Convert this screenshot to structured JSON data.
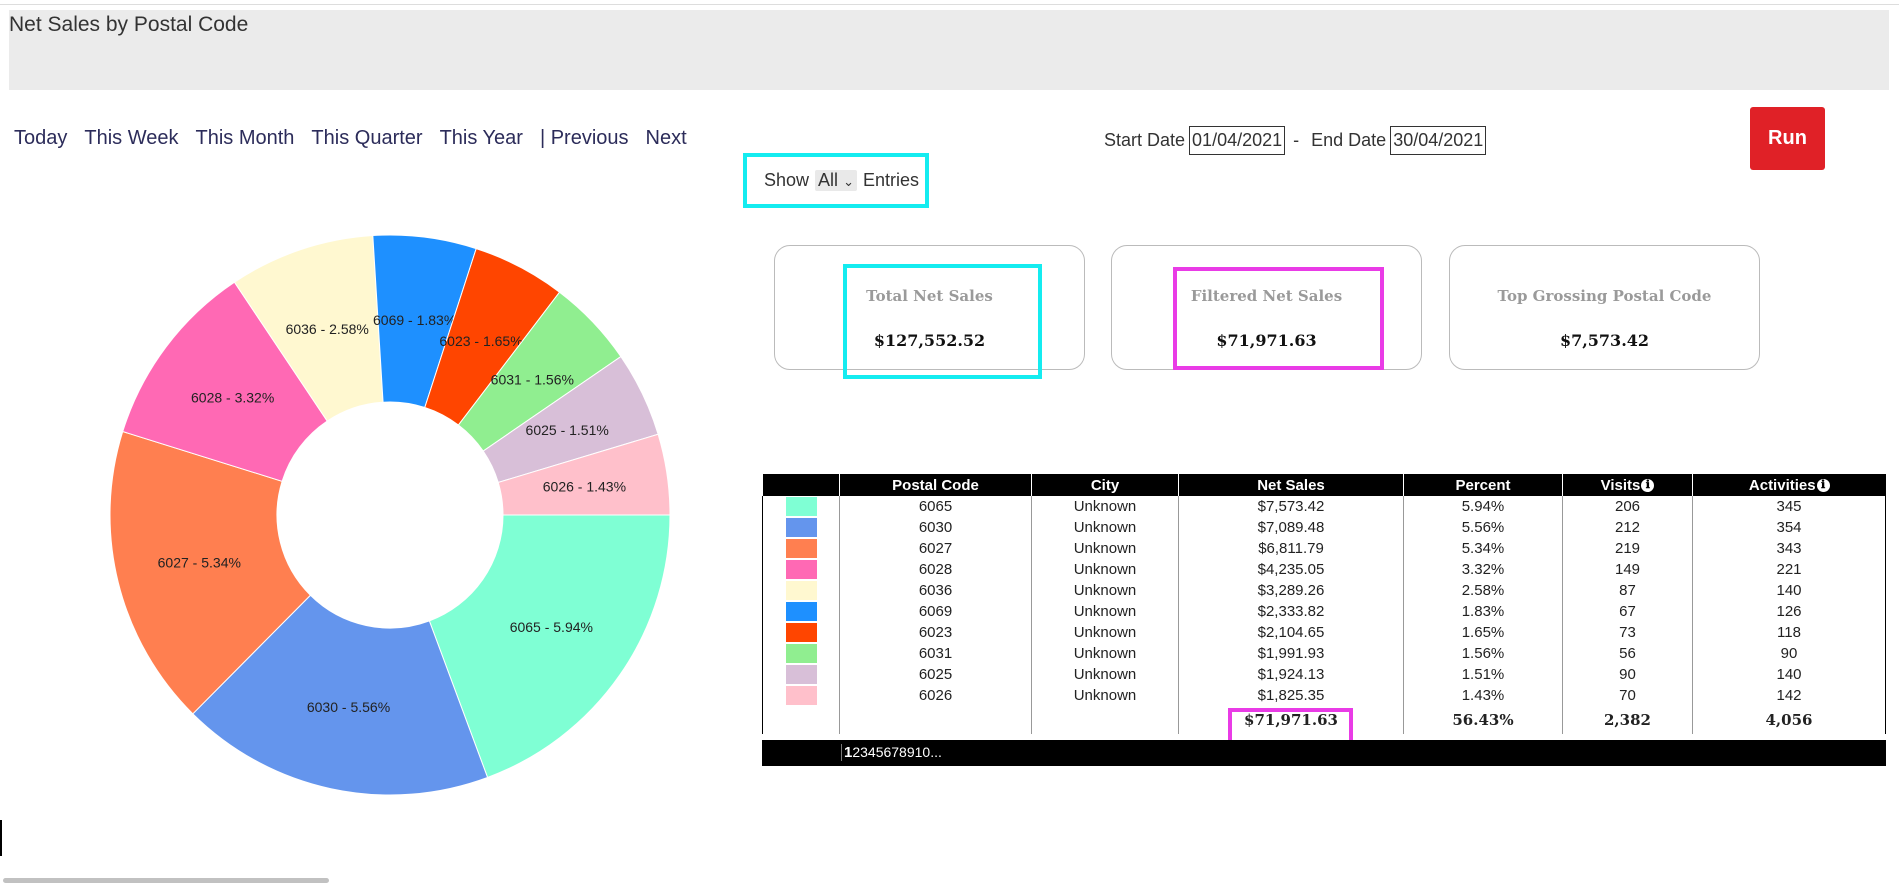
{
  "page": {
    "title": "Net Sales by Postal Code"
  },
  "nav": {
    "items": [
      "Today",
      "This Week",
      "This Month",
      "This Quarter",
      "This Year",
      "| Previous",
      "Next"
    ]
  },
  "dates": {
    "start_label": "Start Date",
    "start_value": "01/04/2021",
    "separator": "-",
    "end_label": "End Date",
    "end_value": "30/04/2021",
    "run_label": "Run"
  },
  "show_entries": {
    "show": "Show",
    "selected": "All",
    "entries": "Entries"
  },
  "cards": [
    {
      "title": "Total Net Sales",
      "value": "$127,552.52"
    },
    {
      "title": "Filtered Net Sales",
      "value": "$71,971.63"
    },
    {
      "title": "Top Grossing Postal Code",
      "value": "$7,573.42"
    }
  ],
  "highlight_colors": {
    "cyan": "#14ecf0",
    "magenta": "#e93be6"
  },
  "chart_data": {
    "type": "pie",
    "donut": true,
    "slices": [
      {
        "label": "6065 - 5.94%",
        "value": 5.94,
        "color": "#7fffd4"
      },
      {
        "label": "6030 - 5.56%",
        "value": 5.56,
        "color": "#6495ed"
      },
      {
        "label": "6027 - 5.34%",
        "value": 5.34,
        "color": "#ff7f50"
      },
      {
        "label": "6028 - 3.32%",
        "value": 3.32,
        "color": "#ff69b4"
      },
      {
        "label": "6036 - 2.58%",
        "value": 2.58,
        "color": "#fff8d0"
      },
      {
        "label": "6069 - 1.83%",
        "value": 1.83,
        "color": "#1e90ff"
      },
      {
        "label": "6023 - 1.65%",
        "value": 1.65,
        "color": "#ff4500"
      },
      {
        "label": "6031 - 1.56%",
        "value": 1.56,
        "color": "#90ee90"
      },
      {
        "label": "6025 - 1.51%",
        "value": 1.51,
        "color": "#d8bfd8"
      },
      {
        "label": "6026 - 1.43%",
        "value": 1.43,
        "color": "#ffc0cb"
      }
    ]
  },
  "table": {
    "headers": [
      "",
      "Postal Code",
      "City",
      "Net Sales",
      "Percent",
      "Visits",
      "Activities"
    ],
    "info_icon": "ℹ",
    "rows": [
      {
        "color": "#7fffd4",
        "postal": "6065",
        "city": "Unknown",
        "sales": "$7,573.42",
        "percent": "5.94%",
        "visits": "206",
        "activities": "345"
      },
      {
        "color": "#6495ed",
        "postal": "6030",
        "city": "Unknown",
        "sales": "$7,089.48",
        "percent": "5.56%",
        "visits": "212",
        "activities": "354"
      },
      {
        "color": "#ff7f50",
        "postal": "6027",
        "city": "Unknown",
        "sales": "$6,811.79",
        "percent": "5.34%",
        "visits": "219",
        "activities": "343"
      },
      {
        "color": "#ff69b4",
        "postal": "6028",
        "city": "Unknown",
        "sales": "$4,235.05",
        "percent": "3.32%",
        "visits": "149",
        "activities": "221"
      },
      {
        "color": "#fff8d0",
        "postal": "6036",
        "city": "Unknown",
        "sales": "$3,289.26",
        "percent": "2.58%",
        "visits": "87",
        "activities": "140"
      },
      {
        "color": "#1e90ff",
        "postal": "6069",
        "city": "Unknown",
        "sales": "$2,333.82",
        "percent": "1.83%",
        "visits": "67",
        "activities": "126"
      },
      {
        "color": "#ff4500",
        "postal": "6023",
        "city": "Unknown",
        "sales": "$2,104.65",
        "percent": "1.65%",
        "visits": "73",
        "activities": "118"
      },
      {
        "color": "#90ee90",
        "postal": "6031",
        "city": "Unknown",
        "sales": "$1,991.93",
        "percent": "1.56%",
        "visits": "56",
        "activities": "90"
      },
      {
        "color": "#d8bfd8",
        "postal": "6025",
        "city": "Unknown",
        "sales": "$1,924.13",
        "percent": "1.51%",
        "visits": "90",
        "activities": "140"
      },
      {
        "color": "#ffc0cb",
        "postal": "6026",
        "city": "Unknown",
        "sales": "$1,825.35",
        "percent": "1.43%",
        "visits": "70",
        "activities": "142"
      }
    ],
    "totals": {
      "sales": "$71,971.63",
      "percent": "56.43%",
      "visits": "2,382",
      "activities": "4,056"
    }
  },
  "pager": {
    "current": "1",
    "rest": "2345678910..."
  }
}
